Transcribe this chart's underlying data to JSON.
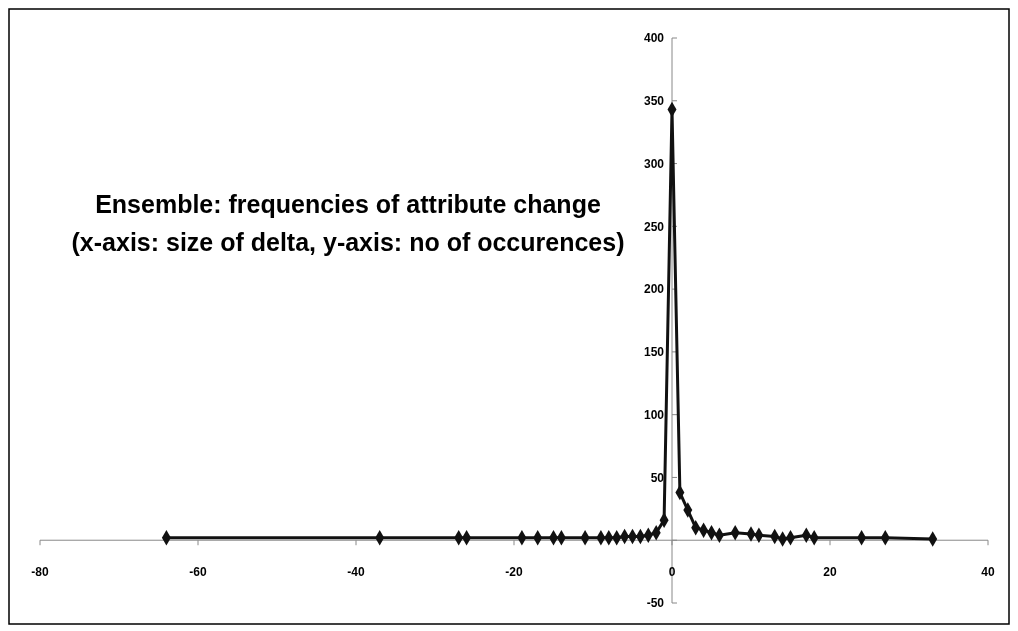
{
  "chart_data": {
    "type": "line",
    "title": "Ensemble: frequencies of attribute change\n(x-axis: size of delta, y-axis: no of occurences)",
    "x": [
      -64,
      -37,
      -27,
      -26,
      -19,
      -17,
      -15,
      -14,
      -11,
      -9,
      -8,
      -7,
      -6,
      -5,
      -4,
      -3,
      -2,
      -1,
      0,
      1,
      2,
      3,
      4,
      5,
      6,
      8,
      10,
      11,
      13,
      14,
      15,
      17,
      18,
      24,
      27,
      33
    ],
    "series": [
      {
        "color": "#111111",
        "values": [
          2,
          2,
          2,
          2,
          2,
          2,
          2,
          2,
          2,
          2,
          2,
          2,
          3,
          3,
          3,
          4,
          6,
          16,
          343,
          38,
          24,
          10,
          8,
          6,
          4,
          6,
          5,
          4,
          3,
          1,
          2,
          4,
          2,
          2,
          2,
          1
        ]
      }
    ],
    "xlim": [
      -80,
      40
    ],
    "xticks": [
      -80,
      -60,
      -40,
      -20,
      0,
      20,
      40
    ],
    "ylim": [
      -50,
      400
    ],
    "yticks": [
      -50,
      {
        "value": 0,
        "label": null
      },
      50,
      100,
      150,
      200,
      250,
      300,
      350,
      400
    ],
    "marker": "diamond",
    "line_style": "solid",
    "grid": false
  }
}
